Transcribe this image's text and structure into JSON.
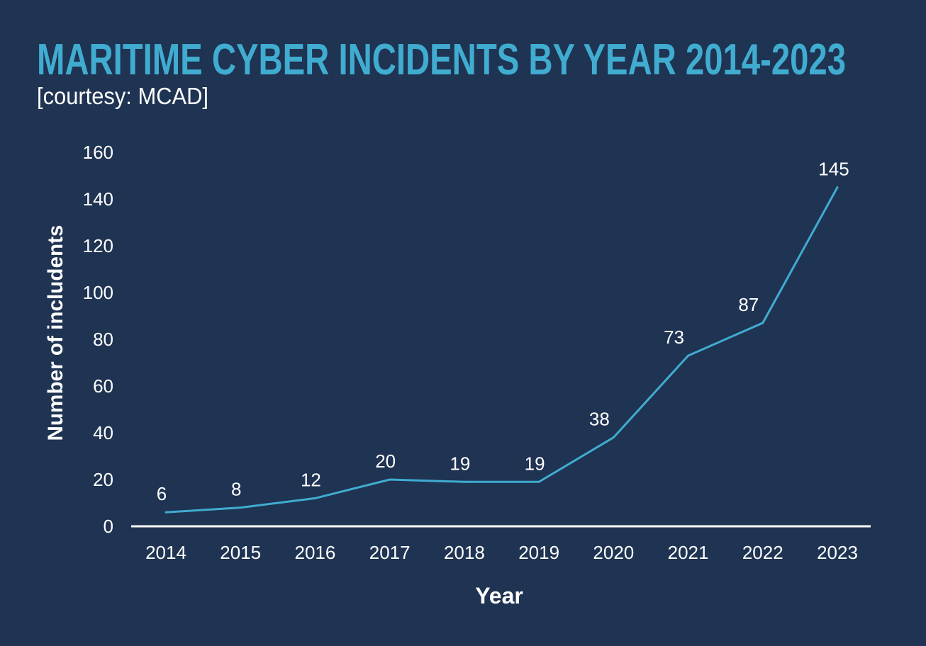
{
  "chart_data": {
    "type": "line",
    "title": "MARITIME CYBER INCIDENTS BY YEAR 2014-2023",
    "subtitle": "[courtesy: MCAD]",
    "xlabel": "Year",
    "ylabel": "Number of includents",
    "categories": [
      "2014",
      "2015",
      "2016",
      "2017",
      "2018",
      "2019",
      "2020",
      "2021",
      "2022",
      "2023"
    ],
    "values": [
      6,
      8,
      12,
      20,
      19,
      19,
      38,
      73,
      87,
      145
    ],
    "data_labels": [
      "6",
      "8",
      "12",
      "20",
      "19",
      "19",
      "38",
      "73",
      "87",
      "145"
    ],
    "ylim": [
      0,
      160
    ],
    "yticks": [
      "0",
      "20",
      "40",
      "60",
      "80",
      "100",
      "120",
      "140",
      "160"
    ],
    "grid": false,
    "colors": {
      "background": "#1f3352",
      "line": "#40acd0",
      "title": "#40acd0",
      "text": "#ffffff"
    }
  }
}
